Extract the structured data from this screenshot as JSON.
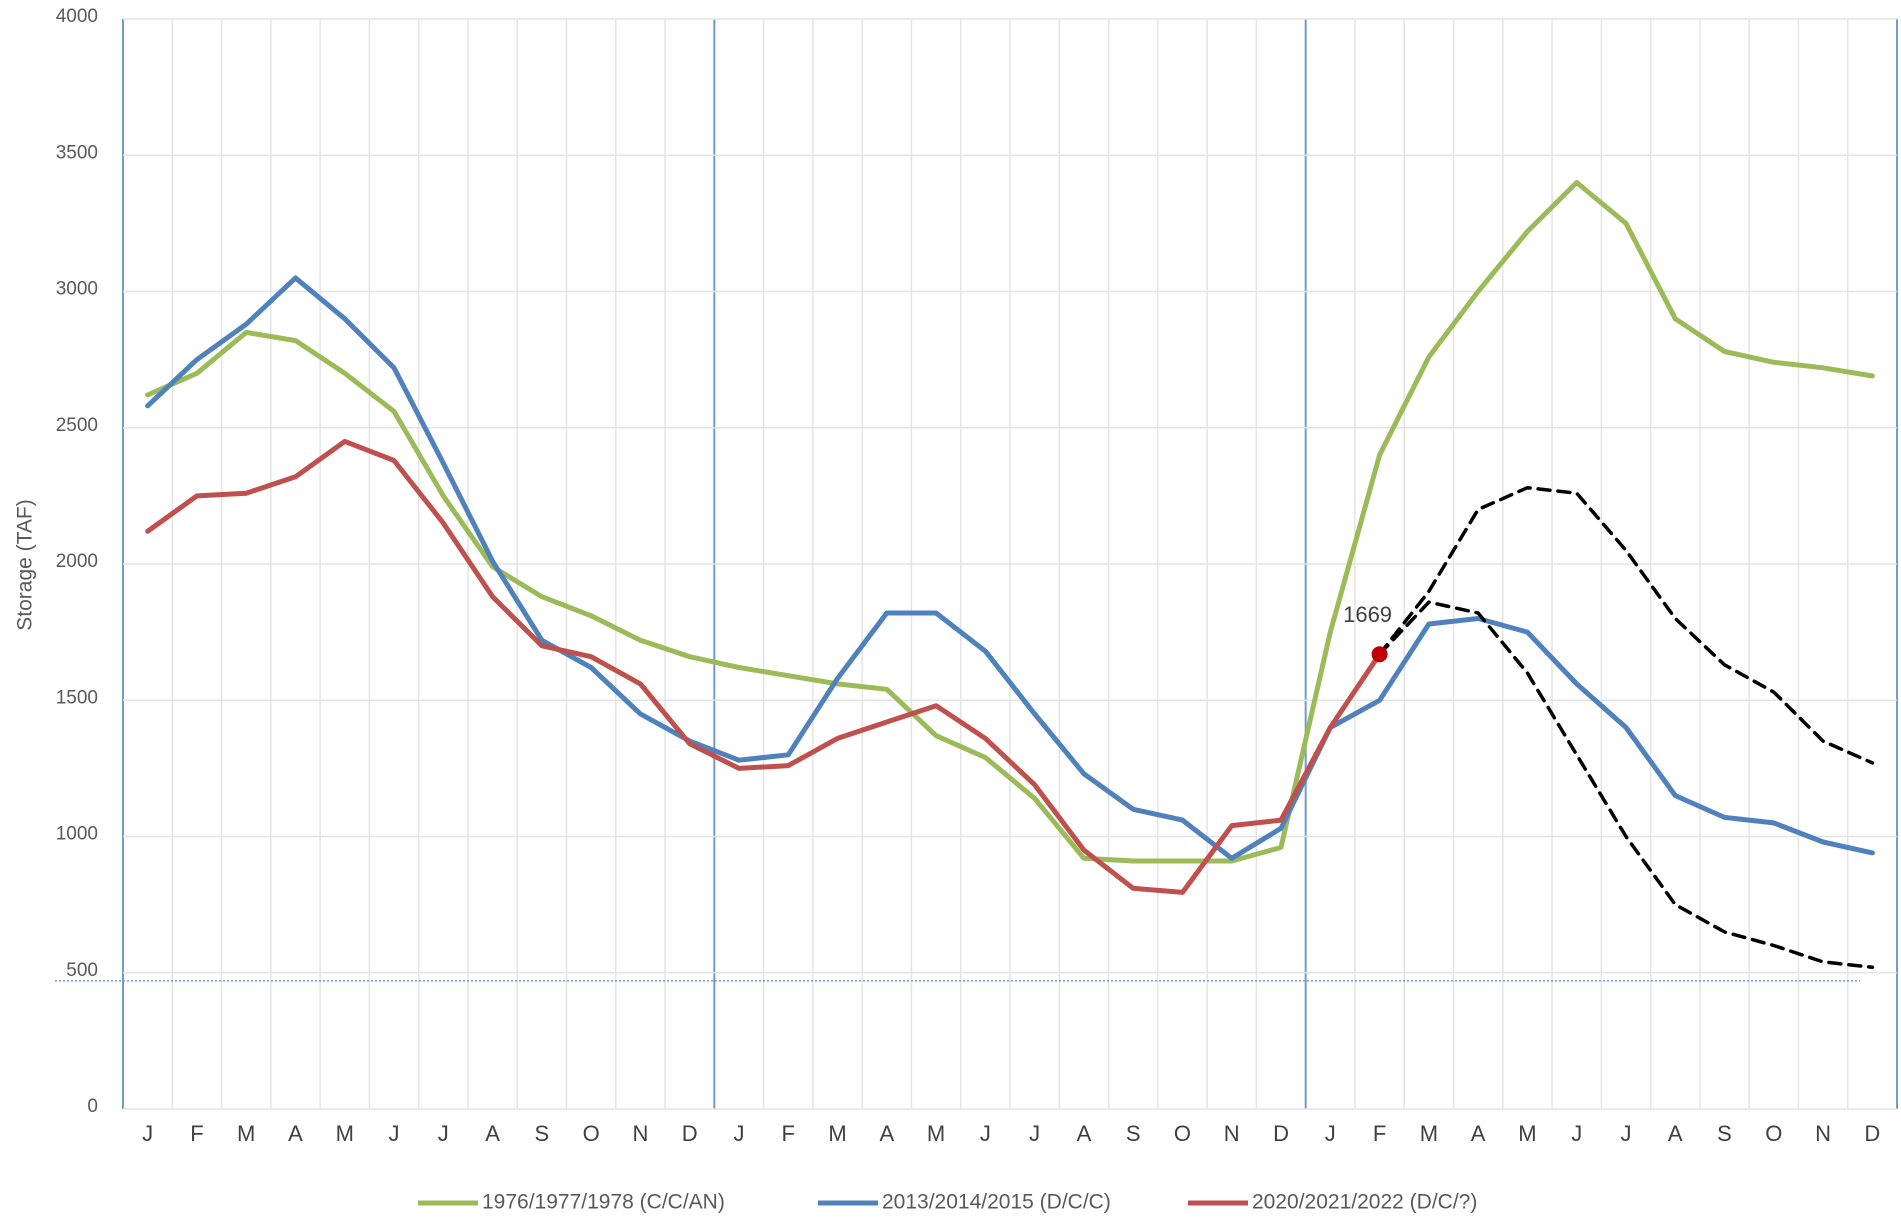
{
  "chart_data": {
    "type": "line",
    "y_label": "Storage (TAF)",
    "categories": [
      "J",
      "F",
      "M",
      "A",
      "M",
      "J",
      "J",
      "A",
      "S",
      "O",
      "N",
      "D",
      "J",
      "F",
      "M",
      "A",
      "M",
      "J",
      "J",
      "A",
      "S",
      "O",
      "N",
      "D",
      "J",
      "F",
      "M",
      "A",
      "M",
      "J",
      "J",
      "A",
      "S",
      "O",
      "N",
      "D"
    ],
    "series": [
      {
        "name": "1976/1977/1978 (C/C/AN)",
        "color": "#9bbb59",
        "values": [
          2620,
          2700,
          2850,
          2820,
          2700,
          2560,
          2250,
          1990,
          1880,
          1810,
          1720,
          1660,
          1620,
          1590,
          1560,
          1540,
          1370,
          1290,
          1140,
          920,
          910,
          910,
          910,
          960,
          1750,
          2400,
          2760,
          3000,
          3220,
          3400,
          3250,
          2900,
          2780,
          2740,
          2720,
          2690
        ]
      },
      {
        "name": "2013/2014/2015 (D/C/C)",
        "color": "#4f81bd",
        "values": [
          2580,
          2750,
          2880,
          3050,
          2900,
          2720,
          2370,
          2010,
          1720,
          1620,
          1450,
          1350,
          1280,
          1300,
          1580,
          1820,
          1820,
          1680,
          1450,
          1230,
          1100,
          1060,
          920,
          1030,
          1400,
          1500,
          1780,
          1800,
          1750,
          1560,
          1400,
          1150,
          1070,
          1050,
          980,
          940
        ]
      },
      {
        "name": "2020/2021/2022 (D/C/?)",
        "color": "#c0504d",
        "values": [
          2120,
          2250,
          2260,
          2320,
          2450,
          2380,
          2150,
          1880,
          1700,
          1660,
          1560,
          1340,
          1250,
          1260,
          1360,
          1420,
          1480,
          1360,
          1190,
          950,
          810,
          795,
          1040,
          1060,
          1400,
          1669,
          null,
          null,
          null,
          null,
          null,
          null,
          null,
          null,
          null,
          null
        ]
      },
      {
        "color": "#000000",
        "dashed": true,
        "values": [
          null,
          null,
          null,
          null,
          null,
          null,
          null,
          null,
          null,
          null,
          null,
          null,
          null,
          null,
          null,
          null,
          null,
          null,
          null,
          null,
          null,
          null,
          null,
          null,
          null,
          1669,
          1900,
          2200,
          2280,
          2260,
          2050,
          1800,
          1630,
          1530,
          1350,
          1270
        ]
      },
      {
        "color": "#000000",
        "dashed": true,
        "values": [
          null,
          null,
          null,
          null,
          null,
          null,
          null,
          null,
          null,
          null,
          null,
          null,
          null,
          null,
          null,
          null,
          null,
          null,
          null,
          null,
          null,
          null,
          null,
          null,
          null,
          1669,
          1860,
          1820,
          1600,
          1300,
          1000,
          750,
          650,
          600,
          540,
          520
        ]
      }
    ],
    "reference_line": 470,
    "ylim": [
      0,
      4000
    ],
    "yticks": [
      0,
      500,
      1000,
      1500,
      2000,
      2500,
      3000,
      3500,
      4000
    ],
    "grid": true
  }
}
